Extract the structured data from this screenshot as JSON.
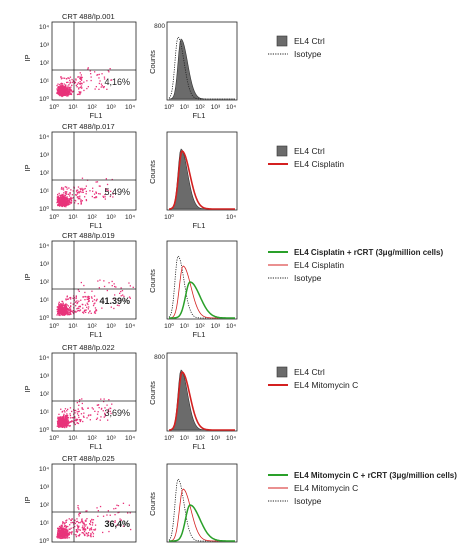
{
  "panels": [
    {
      "id": "p1",
      "dot": {
        "title": "CRT 488/Ip.001",
        "quadrant_value": "4,16%",
        "value_bold": false,
        "xlabel": "FL1",
        "ylabel": "IP"
      },
      "hist": {
        "xlabel": "FL1",
        "ylabel": "Counts",
        "ymax_label": "800",
        "x_ticks": [
          "10⁰",
          "10¹",
          "10²",
          "10³",
          "10⁴"
        ],
        "series": [
          "ctrl",
          "iso"
        ]
      },
      "legend": [
        {
          "label": "EL4 Ctrl",
          "style": "filled-gray",
          "bold": false
        },
        {
          "label": "Isotype",
          "style": "dotted",
          "bold": false
        }
      ]
    },
    {
      "id": "p2",
      "dot": {
        "title": "CRT 488/Ip.017",
        "quadrant_value": "5,49%",
        "value_bold": false,
        "xlabel": "FL1",
        "ylabel": "IP"
      },
      "hist": {
        "xlabel": "FL1",
        "ylabel": "Counts",
        "ymax_label": "",
        "x_ticks": [
          "10⁰",
          "",
          "",
          "",
          "10⁴"
        ],
        "series": [
          "ctrl",
          "red"
        ]
      },
      "legend": [
        {
          "label": "EL4 Ctrl",
          "style": "filled-gray",
          "bold": false
        },
        {
          "label": "EL4 Cisplatin",
          "style": "red",
          "bold": false
        }
      ]
    },
    {
      "id": "p3",
      "dot": {
        "title": "CRT 488/Ip.019",
        "quadrant_value": "41.39%",
        "value_bold": true,
        "xlabel": "FL1",
        "ylabel": "IP"
      },
      "hist": {
        "xlabel": "FL1",
        "ylabel": "Counts",
        "ymax_label": "",
        "x_ticks": [
          "10⁰",
          "10¹",
          "10²",
          "10³",
          "10⁴"
        ],
        "series": [
          "iso",
          "redthin",
          "green"
        ]
      },
      "legend": [
        {
          "label": "EL4 Cisplatin + rCRT (3μg/million cells)",
          "style": "green",
          "bold": true
        },
        {
          "label": "EL4 Cisplatin",
          "style": "red-thin",
          "bold": false
        },
        {
          "label": "Isotype",
          "style": "dotted",
          "bold": false
        }
      ]
    },
    {
      "id": "p4",
      "dot": {
        "title": "CRT 488/Ip.022",
        "quadrant_value": "3,69%",
        "value_bold": false,
        "xlabel": "FL1",
        "ylabel": "IP"
      },
      "hist": {
        "xlabel": "FL1",
        "ylabel": "Counts",
        "ymax_label": "800",
        "x_ticks": [
          "10⁰",
          "10¹",
          "10²",
          "10³",
          "10⁴"
        ],
        "series": [
          "ctrl",
          "red"
        ]
      },
      "legend": [
        {
          "label": "EL4 Ctrl",
          "style": "filled-gray",
          "bold": false
        },
        {
          "label": "EL4 Mitomycin C",
          "style": "red",
          "bold": false
        }
      ]
    },
    {
      "id": "p5",
      "dot": {
        "title": "CRT 488/Ip.025",
        "quadrant_value": "36,4%",
        "value_bold": true,
        "xlabel": "FL1",
        "ylabel": "IP"
      },
      "hist": {
        "xlabel": "FL1",
        "ylabel": "Counts",
        "ymax_label": "",
        "x_ticks": [
          "10⁰",
          "10¹",
          "10²",
          "10³",
          "10⁴"
        ],
        "series": [
          "iso",
          "redthin",
          "green"
        ]
      },
      "legend": [
        {
          "label": "EL4 Mitomycin C + rCRT (3μg/million cells)",
          "style": "green",
          "bold": true
        },
        {
          "label": "EL4 Mitomycin C",
          "style": "red-thin",
          "bold": false
        },
        {
          "label": "Isotype",
          "style": "dotted",
          "bold": false
        }
      ]
    }
  ],
  "axis_tick_labels": [
    "10⁰",
    "10¹",
    "10²",
    "10³",
    "10⁴"
  ],
  "colors": {
    "dots": "#e8337a",
    "ctrl_fill": "#6b6b6b",
    "red": "#d42020",
    "green": "#2aa02a",
    "frame": "#222222"
  },
  "chart_data": [
    {
      "type": "scatter",
      "title": "CRT 488/Ip.001",
      "xlabel": "FL1",
      "ylabel": "IP",
      "xscale": "log",
      "yscale": "log",
      "xlim": [
        1,
        10000
      ],
      "ylim": [
        1,
        10000
      ],
      "upper_right_percent": 4.16
    },
    {
      "type": "scatter",
      "title": "CRT 488/Ip.017",
      "xlabel": "FL1",
      "ylabel": "IP",
      "xscale": "log",
      "yscale": "log",
      "xlim": [
        1,
        10000
      ],
      "ylim": [
        1,
        10000
      ],
      "upper_right_percent": 5.49
    },
    {
      "type": "scatter",
      "title": "CRT 488/Ip.019",
      "xlabel": "FL1",
      "ylabel": "IP",
      "xscale": "log",
      "yscale": "log",
      "xlim": [
        1,
        10000
      ],
      "ylim": [
        1,
        10000
      ],
      "upper_right_percent": 41.39
    },
    {
      "type": "scatter",
      "title": "CRT 488/Ip.022",
      "xlabel": "FL1",
      "ylabel": "IP",
      "xscale": "log",
      "yscale": "log",
      "xlim": [
        1,
        10000
      ],
      "ylim": [
        1,
        10000
      ],
      "upper_right_percent": 3.69
    },
    {
      "type": "scatter",
      "title": "CRT 488/Ip.025",
      "xlabel": "FL1",
      "ylabel": "IP",
      "xscale": "log",
      "yscale": "log",
      "xlim": [
        1,
        10000
      ],
      "ylim": [
        1,
        10000
      ],
      "upper_right_percent": 36.4
    },
    {
      "type": "line",
      "xlabel": "FL1",
      "ylabel": "Counts",
      "xscale": "log",
      "xlim": [
        1,
        10000
      ],
      "ylim": [
        0,
        800
      ],
      "series": [
        {
          "name": "EL4 Ctrl",
          "peak_fl1": 6,
          "peak_counts": 640
        },
        {
          "name": "Isotype",
          "peak_fl1": 5,
          "peak_counts": 720
        }
      ]
    },
    {
      "type": "line",
      "xlabel": "FL1",
      "ylabel": "Counts",
      "xscale": "log",
      "xlim": [
        1,
        10000
      ],
      "series": [
        {
          "name": "EL4 Ctrl",
          "peak_fl1": 7,
          "peak_counts": 620
        },
        {
          "name": "EL4 Cisplatin",
          "peak_fl1": 7,
          "peak_counts": 620
        }
      ]
    },
    {
      "type": "line",
      "xlabel": "FL1",
      "ylabel": "Counts",
      "xscale": "log",
      "xlim": [
        1,
        10000
      ],
      "series": [
        {
          "name": "EL4 Cisplatin + rCRT (3μg/million cells)",
          "peak_fl1": 14,
          "peak_counts": 380
        },
        {
          "name": "EL4 Cisplatin",
          "peak_fl1": 7,
          "peak_counts": 500
        },
        {
          "name": "Isotype",
          "peak_fl1": 4,
          "peak_counts": 580
        }
      ]
    },
    {
      "type": "line",
      "xlabel": "FL1",
      "ylabel": "Counts",
      "xscale": "log",
      "xlim": [
        1,
        10000
      ],
      "ylim": [
        0,
        800
      ],
      "series": [
        {
          "name": "EL4 Ctrl",
          "peak_fl1": 6,
          "peak_counts": 620
        },
        {
          "name": "EL4 Mitomycin C",
          "peak_fl1": 6,
          "peak_counts": 600
        }
      ]
    },
    {
      "type": "line",
      "xlabel": "FL1",
      "ylabel": "Counts",
      "xscale": "log",
      "xlim": [
        1,
        10000
      ],
      "series": [
        {
          "name": "EL4 Mitomycin C + rCRT (3μg/million cells)",
          "peak_fl1": 14,
          "peak_counts": 390
        },
        {
          "name": "EL4 Mitomycin C",
          "peak_fl1": 8,
          "peak_counts": 470
        },
        {
          "name": "Isotype",
          "peak_fl1": 4,
          "peak_counts": 560
        }
      ]
    }
  ]
}
